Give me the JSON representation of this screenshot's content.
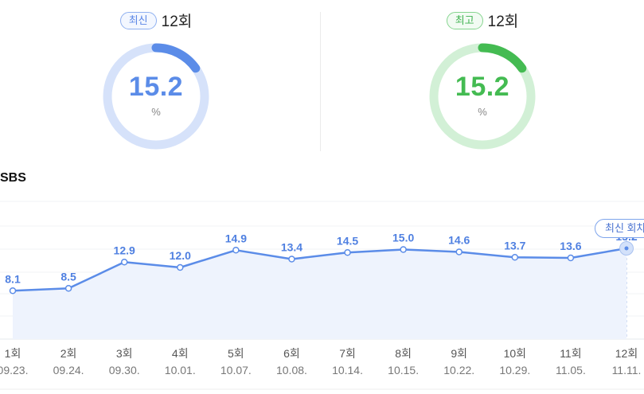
{
  "summary": {
    "latest": {
      "badge": "최신",
      "episode": "12회",
      "value": "15.2",
      "unit": "%",
      "ratio": 0.152,
      "color": "#5b8ce8",
      "track_color": "#d6e2fa"
    },
    "best": {
      "badge": "최고",
      "episode": "12회",
      "value": "15.2",
      "unit": "%",
      "ratio": 0.152,
      "color": "#44bb52",
      "track_color": "#d2f0d6"
    }
  },
  "channel": "SBS",
  "latest_marker_label": "최신 회차",
  "chart_data": {
    "type": "area",
    "episodes": [
      "1회",
      "2회",
      "3회",
      "4회",
      "5회",
      "6회",
      "7회",
      "8회",
      "9회",
      "10회",
      "11회",
      "12회"
    ],
    "dates": [
      "09.23.",
      "09.24.",
      "09.30.",
      "10.01.",
      "10.07.",
      "10.08.",
      "10.14.",
      "10.15.",
      "10.22.",
      "10.29.",
      "11.05.",
      "11.11."
    ],
    "values": [
      8.1,
      8.5,
      12.9,
      12.0,
      14.9,
      13.4,
      14.5,
      15.0,
      14.6,
      13.7,
      13.6,
      15.2
    ],
    "value_labels": [
      "8.1",
      "8.5",
      "12.9",
      "12.0",
      "14.9",
      "13.4",
      "14.5",
      "15.0",
      "14.6",
      "13.7",
      "13.6",
      "15.2"
    ],
    "highlight_index": 11,
    "line_color": "#5b8ce8",
    "fill_color": "#eef3fd",
    "grid": true
  }
}
